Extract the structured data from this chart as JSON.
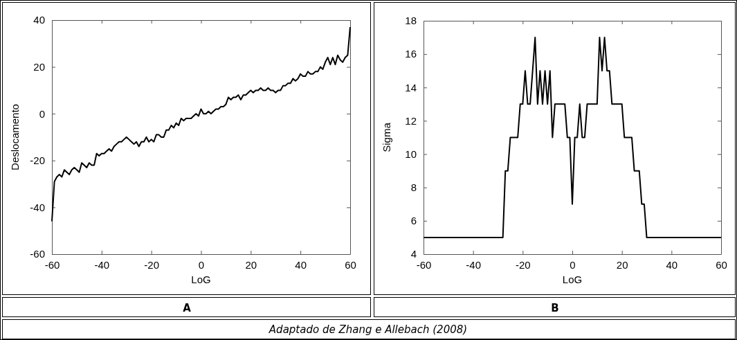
{
  "chart_data": [
    {
      "type": "line",
      "title": "A",
      "xlabel": "LoG",
      "ylabel": "Deslocamento",
      "xlim": [
        -60,
        60
      ],
      "xticks": [
        -60,
        -40,
        -20,
        0,
        20,
        40,
        60
      ],
      "ylim": [
        -60,
        40
      ],
      "yticks": [
        -60,
        -40,
        -20,
        0,
        20,
        40
      ],
      "grid": false,
      "marker": "none",
      "line_style": "solid",
      "annotations": [
        "Adaptado de Zhang e Allebach (2008)"
      ],
      "x": [
        -60,
        -59,
        -58,
        -57,
        -56,
        -55,
        -54,
        -53,
        -52,
        -51,
        -50,
        -49,
        -48,
        -47,
        -46,
        -45,
        -44,
        -43,
        -42,
        -41,
        -40,
        -39,
        -38,
        -37,
        -36,
        -35,
        -34,
        -33,
        -32,
        -31,
        -30,
        -29,
        -28,
        -27,
        -26,
        -25,
        -24,
        -23,
        -22,
        -21,
        -20,
        -19,
        -18,
        -17,
        -16,
        -15,
        -14,
        -13,
        -12,
        -11,
        -10,
        -9,
        -8,
        -7,
        -6,
        -5,
        -4,
        -3,
        -2,
        -1,
        0,
        1,
        2,
        3,
        4,
        5,
        6,
        7,
        8,
        9,
        10,
        11,
        12,
        13,
        14,
        15,
        16,
        17,
        18,
        19,
        20,
        21,
        22,
        23,
        24,
        25,
        26,
        27,
        28,
        29,
        30,
        31,
        32,
        33,
        34,
        35,
        36,
        37,
        38,
        39,
        40,
        41,
        42,
        43,
        44,
        45,
        46,
        47,
        48,
        49,
        50,
        51,
        52,
        53,
        54,
        55,
        56,
        57,
        58,
        59,
        60
      ],
      "series": [
        {
          "color": "#000000",
          "values": [
            -46,
            -29,
            -27,
            -26,
            -27,
            -24,
            -25,
            -26,
            -24,
            -23,
            -24,
            -25,
            -21,
            -22,
            -23,
            -21,
            -22,
            -22,
            -17,
            -18,
            -17,
            -17,
            -16,
            -15,
            -16,
            -14,
            -13,
            -12,
            -12,
            -11,
            -10,
            -11,
            -12,
            -13,
            -12,
            -14,
            -12,
            -12,
            -10,
            -12,
            -11,
            -12,
            -9,
            -9,
            -10,
            -10,
            -7,
            -7,
            -5,
            -6,
            -4,
            -5,
            -2,
            -3,
            -2,
            -2,
            -2,
            -1,
            0,
            -1,
            2,
            0,
            0,
            1,
            0,
            1,
            2,
            2,
            3,
            3,
            4,
            7,
            6,
            7,
            7,
            8,
            6,
            8,
            8,
            9,
            10,
            9,
            10,
            10,
            11,
            10,
            10,
            11,
            10,
            10,
            9,
            10,
            10,
            12,
            12,
            13,
            13,
            15,
            14,
            15,
            17,
            16,
            16,
            18,
            17,
            17,
            18,
            18,
            20,
            19,
            22,
            24,
            21,
            24,
            21,
            25,
            23,
            22,
            24,
            25,
            37
          ]
        }
      ]
    },
    {
      "type": "line",
      "title": "B",
      "xlabel": "LoG",
      "ylabel": "Sigma",
      "xlim": [
        -60,
        60
      ],
      "xticks": [
        -60,
        -40,
        -20,
        0,
        20,
        40,
        60
      ],
      "ylim": [
        4,
        18
      ],
      "yticks": [
        4,
        6,
        8,
        10,
        12,
        14,
        16,
        18
      ],
      "grid": false,
      "marker": "none",
      "line_style": "solid",
      "x": [
        -60,
        -28,
        -27,
        -26,
        -25,
        -22,
        -21,
        -20,
        -19,
        -18,
        -17,
        -16,
        -15,
        -14,
        -13,
        -12,
        -11,
        -10,
        -9,
        -8,
        -7,
        -3,
        -2,
        -1,
        0,
        1,
        2,
        3,
        4,
        5,
        6,
        10,
        11,
        12,
        13,
        14,
        15,
        16,
        20,
        21,
        24,
        25,
        27,
        28,
        29,
        30,
        60
      ],
      "series": [
        {
          "color": "#000000",
          "values": [
            5,
            5,
            9,
            9,
            11,
            11,
            13,
            13,
            15,
            13,
            13,
            15,
            17,
            13,
            15,
            13,
            15,
            13,
            15,
            11,
            13,
            13,
            11,
            11,
            7,
            11,
            11,
            13,
            11,
            11,
            13,
            13,
            17,
            15,
            17,
            15,
            15,
            13,
            13,
            11,
            11,
            9,
            9,
            7,
            7,
            5,
            5
          ]
        }
      ]
    }
  ]
}
